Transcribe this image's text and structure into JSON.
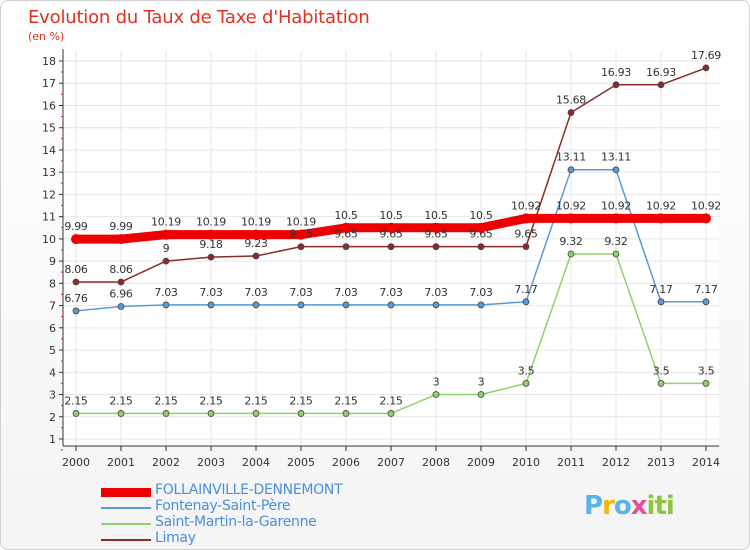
{
  "header": {
    "title": "Evolution du Taux de Taxe d'Habitation",
    "unit": "(en %)"
  },
  "logo": {
    "text": "Proxiti"
  },
  "chart_data": {
    "type": "line",
    "title": "Evolution du Taux de Taxe d'Habitation",
    "ylabel": "(en %)",
    "xlabel": "",
    "ylim": [
      1,
      18
    ],
    "yticks": [
      "1",
      "2",
      "3",
      "4",
      "5",
      "6",
      "7",
      "8",
      "9",
      "10",
      "11",
      "12",
      "13",
      "14",
      "15",
      "16",
      "17",
      "18"
    ],
    "x": [
      "2000",
      "2001",
      "2002",
      "2003",
      "2004",
      "2005",
      "2006",
      "2007",
      "2008",
      "2009",
      "2010",
      "2011",
      "2012",
      "2013",
      "2014"
    ],
    "grid": true,
    "legend_position": "bottom-left",
    "series": [
      {
        "name": "FOLLAINVILLE-DENNEMONT",
        "color": "#ee0000",
        "width": 9,
        "values": [
          9.99,
          9.99,
          10.19,
          10.19,
          10.19,
          10.19,
          10.5,
          10.5,
          10.5,
          10.5,
          10.92,
          10.92,
          10.92,
          10.92,
          10.92
        ],
        "labels": [
          "9.99",
          "9.99",
          "10.19",
          "10.19",
          "10.19",
          "10.19",
          "10.5",
          "10.5",
          "10.5",
          "10.5",
          "10.92",
          "10.92",
          "10.92",
          "10.92",
          "10.92"
        ]
      },
      {
        "name": "Fontenay-Saint-Père",
        "color": "#5b9bd5",
        "width": 1.5,
        "values": [
          6.76,
          6.96,
          7.03,
          7.03,
          7.03,
          7.03,
          7.03,
          7.03,
          7.03,
          7.03,
          7.17,
          13.11,
          13.11,
          7.17,
          7.17
        ],
        "labels": [
          "6.76",
          "6.96",
          "7.03",
          "7.03",
          "7.03",
          "7.03",
          "7.03",
          "7.03",
          "7.03",
          "7.03",
          "7.17",
          "13.11",
          "13.11",
          "7.17",
          "7.17"
        ]
      },
      {
        "name": "Saint-Martin-la-Garenne",
        "color": "#8fd16a",
        "width": 1.5,
        "values": [
          2.15,
          2.15,
          2.15,
          2.15,
          2.15,
          2.15,
          2.15,
          2.15,
          3,
          3,
          3.5,
          9.32,
          9.32,
          3.5,
          3.5
        ],
        "labels": [
          "2.15",
          "2.15",
          "2.15",
          "2.15",
          "2.15",
          "2.15",
          "2.15",
          "2.15",
          "3",
          "3",
          "3.5",
          "9.32",
          "9.32",
          "3.5",
          "3.5"
        ]
      },
      {
        "name": "Limay",
        "color": "#8b2a2a",
        "width": 1.5,
        "values": [
          8.06,
          8.06,
          9,
          9.18,
          9.23,
          9.65,
          9.65,
          9.65,
          9.65,
          9.65,
          9.65,
          15.68,
          16.93,
          16.93,
          17.69
        ],
        "labels": [
          "8.06",
          "8.06",
          "9",
          "9.18",
          "9.23",
          "9.65",
          "9.65",
          "9.65",
          "9.65",
          "9.65",
          "9.65",
          "15.68",
          "16.93",
          "16.93",
          "17.69"
        ]
      }
    ]
  }
}
